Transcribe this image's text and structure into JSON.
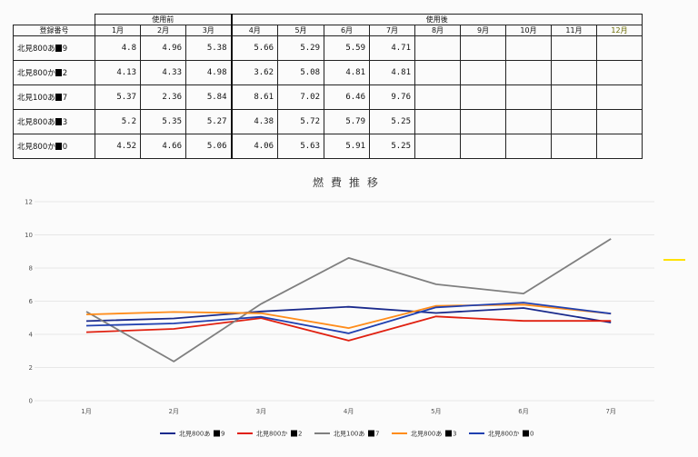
{
  "table": {
    "col_header_label": "登録番号",
    "group_before": "使用前",
    "group_after": "使用後",
    "months": [
      "1月",
      "2月",
      "3月",
      "4月",
      "5月",
      "6月",
      "7月",
      "8月",
      "9月",
      "10月",
      "11月",
      "12月"
    ],
    "rows": [
      {
        "prefix": "北見800あ",
        "suffix": "9",
        "values": [
          "4.8",
          "4.96",
          "5.38",
          "5.66",
          "5.29",
          "5.59",
          "4.71"
        ]
      },
      {
        "prefix": "北見800か",
        "suffix": "2",
        "values": [
          "4.13",
          "4.33",
          "4.98",
          "3.62",
          "5.08",
          "4.81",
          "4.81"
        ]
      },
      {
        "prefix": "北見100あ",
        "suffix": "7",
        "values": [
          "5.37",
          "2.36",
          "5.84",
          "8.61",
          "7.02",
          "6.46",
          "9.76"
        ]
      },
      {
        "prefix": "北見800あ",
        "suffix": "3",
        "values": [
          "5.2",
          "5.35",
          "5.27",
          "4.38",
          "5.72",
          "5.79",
          "5.25"
        ]
      },
      {
        "prefix": "北見800か",
        "suffix": "0",
        "values": [
          "4.52",
          "4.66",
          "5.06",
          "4.06",
          "5.63",
          "5.91",
          "5.25"
        ]
      }
    ]
  },
  "chart_data": {
    "type": "line",
    "title": "燃費推移",
    "categories": [
      "1月",
      "2月",
      "3月",
      "4月",
      "5月",
      "6月",
      "7月"
    ],
    "ylim": [
      0,
      12
    ],
    "yticks": [
      "0",
      "2",
      "4",
      "6",
      "8",
      "10",
      "12"
    ],
    "grid": true,
    "legend": "bottom",
    "series": [
      {
        "prefix": "北見800あ",
        "suffix": "9",
        "color": "#1a2a8c",
        "values": [
          4.8,
          4.96,
          5.38,
          5.66,
          5.29,
          5.59,
          4.71
        ]
      },
      {
        "prefix": "北見800か",
        "suffix": "2",
        "color": "#e02010",
        "values": [
          4.13,
          4.33,
          4.98,
          3.62,
          5.08,
          4.81,
          4.81
        ]
      },
      {
        "prefix": "北見100あ",
        "suffix": "7",
        "color": "#7f7f7f",
        "values": [
          5.37,
          2.36,
          5.84,
          8.61,
          7.02,
          6.46,
          9.76
        ]
      },
      {
        "prefix": "北見800あ",
        "suffix": "3",
        "color": "#ff8c1a",
        "values": [
          5.2,
          5.35,
          5.27,
          4.38,
          5.72,
          5.79,
          5.25
        ]
      },
      {
        "prefix": "北見800か",
        "suffix": "0",
        "color": "#2040b0",
        "values": [
          4.52,
          4.66,
          5.06,
          4.06,
          5.63,
          5.91,
          5.25
        ]
      }
    ]
  }
}
